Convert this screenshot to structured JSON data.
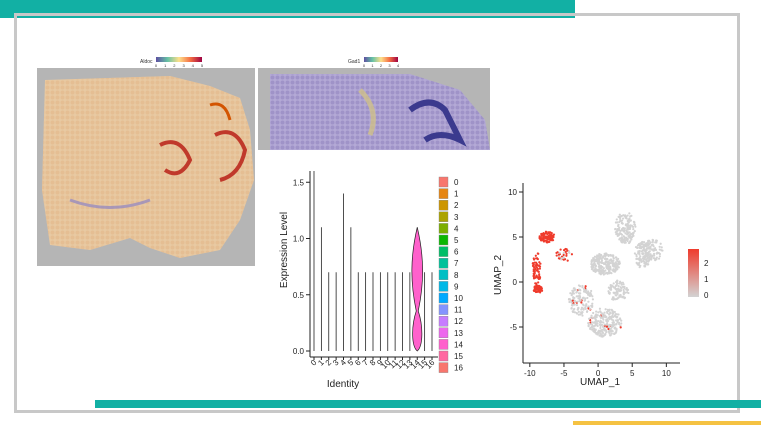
{
  "colors": {
    "teal": "#12b0a4",
    "frame_gray": "#c8c8c8",
    "yellow": "#f5c242"
  },
  "spatial": [
    {
      "gene": "Aldoc",
      "colorbar_ticks": [
        "0",
        "1",
        "2",
        "3",
        "4",
        "5"
      ]
    },
    {
      "gene": "Gad1",
      "colorbar_ticks": [
        "0",
        "1",
        "2",
        "3",
        "4"
      ]
    }
  ],
  "chart_data": [
    {
      "type": "violin",
      "xlabel": "Identity",
      "ylabel": "Expression Level",
      "ylim": [
        0,
        1.6
      ],
      "yticks": [
        0.0,
        0.5,
        1.0,
        1.5
      ],
      "categories": [
        "0",
        "1",
        "2",
        "3",
        "4",
        "5",
        "6",
        "7",
        "8",
        "9",
        "10",
        "11",
        "12",
        "13",
        "14",
        "15",
        "16"
      ],
      "values": [
        1.6,
        1.1,
        0.7,
        0.7,
        1.4,
        1.1,
        0.7,
        0.7,
        0.7,
        0.7,
        0.7,
        0.7,
        0.7,
        0.7,
        1.1,
        0.7,
        0.7
      ],
      "highlight_category": "14",
      "legend": {
        "position": "right",
        "labels": [
          "0",
          "1",
          "2",
          "3",
          "4",
          "5",
          "6",
          "7",
          "8",
          "9",
          "10",
          "11",
          "12",
          "13",
          "14",
          "15",
          "16"
        ],
        "colors": [
          "#f8766d",
          "#e68613",
          "#cd9600",
          "#aba300",
          "#7cae00",
          "#0cb702",
          "#00be67",
          "#00c19a",
          "#00bfc4",
          "#00b8e7",
          "#00a9ff",
          "#8494ff",
          "#c77cff",
          "#ed68ed",
          "#ff61cc",
          "#ff68a1",
          "#f8766d"
        ]
      }
    },
    {
      "type": "scatter",
      "xlabel": "UMAP_1",
      "ylabel": "UMAP_2",
      "xlim": [
        -11,
        12
      ],
      "ylim": [
        -9,
        11
      ],
      "xticks": [
        -10,
        -5,
        0,
        5,
        10
      ],
      "yticks": [
        -5,
        0,
        5,
        10
      ],
      "colorbar": {
        "ticks": [
          "0",
          "1",
          "2"
        ],
        "low_color": "#d3d3d3",
        "high_color": "#ef3b2c"
      }
    }
  ]
}
